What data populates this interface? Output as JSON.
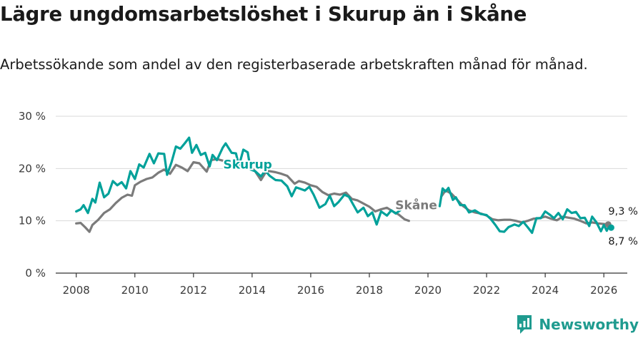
{
  "title": "Lägre ungdomsarbetslöshet i Skurup än i Skåne",
  "subtitle": "Arbetssökande som andel av den registerbaserade arbetskraften månad för månad.",
  "brand": "Newsworthy",
  "colors": {
    "skurup": "#00a19a",
    "skane": "#7b7b7b",
    "grid": "#d9d9d9",
    "axis": "#333333"
  },
  "chart_data": {
    "type": "line",
    "title": "Lägre ungdomsarbetslöshet i Skurup än i Skåne",
    "ylabel": "",
    "xlabel": "",
    "xlim": [
      2007.3,
      2026.8
    ],
    "ylim": [
      0,
      30
    ],
    "yticks": [
      0,
      10,
      20,
      30
    ],
    "ytick_labels": [
      "0 %",
      "10 %",
      "20 %",
      "30 %"
    ],
    "xticks": [
      2008,
      2010,
      2012,
      2014,
      2016,
      2018,
      2020,
      2022,
      2024,
      2026
    ],
    "xtick_labels": [
      "2008",
      "2010",
      "2012",
      "2014",
      "2016",
      "2018",
      "2020",
      "2022",
      "2024",
      "2026"
    ],
    "grid": true,
    "series": [
      {
        "name": "Skåne",
        "label": "Skåne",
        "end_label": "9,3 %",
        "points": [
          [
            2008.0,
            9.5
          ],
          [
            2008.15,
            9.6
          ],
          [
            2008.3,
            8.8
          ],
          [
            2008.45,
            7.9
          ],
          [
            2008.55,
            9.2
          ],
          [
            2008.75,
            10.2
          ],
          [
            2008.95,
            11.5
          ],
          [
            2009.15,
            12.2
          ],
          [
            2009.35,
            13.4
          ],
          [
            2009.55,
            14.4
          ],
          [
            2009.75,
            15.0
          ],
          [
            2009.9,
            14.8
          ],
          [
            2010.0,
            16.8
          ],
          [
            2010.2,
            17.5
          ],
          [
            2010.4,
            18.0
          ],
          [
            2010.6,
            18.3
          ],
          [
            2010.8,
            19.2
          ],
          [
            2011.0,
            19.8
          ],
          [
            2011.2,
            19.0
          ],
          [
            2011.4,
            20.7
          ],
          [
            2011.6,
            20.2
          ],
          [
            2011.8,
            19.5
          ],
          [
            2012.0,
            21.2
          ],
          [
            2012.2,
            21.0
          ],
          [
            2012.45,
            19.4
          ],
          [
            2012.6,
            21.6
          ],
          [
            2012.8,
            21.8
          ],
          [
            2013.0,
            21.5
          ],
          [
            2013.2,
            21.3
          ],
          [
            2013.4,
            21.2
          ],
          [
            2013.6,
            20.5
          ],
          [
            2013.9,
            20.5
          ],
          [
            2014.1,
            19.5
          ],
          [
            2014.3,
            17.8
          ],
          [
            2014.5,
            19.6
          ],
          [
            2014.8,
            19.3
          ],
          [
            2015.0,
            19.0
          ],
          [
            2015.2,
            18.6
          ],
          [
            2015.45,
            17.1
          ],
          [
            2015.6,
            17.6
          ],
          [
            2015.8,
            17.3
          ],
          [
            2016.0,
            16.8
          ],
          [
            2016.2,
            16.5
          ],
          [
            2016.4,
            15.5
          ],
          [
            2016.6,
            14.9
          ],
          [
            2016.8,
            15.2
          ],
          [
            2017.0,
            15.0
          ],
          [
            2017.2,
            15.4
          ],
          [
            2017.4,
            14.2
          ],
          [
            2017.6,
            13.9
          ],
          [
            2017.8,
            13.3
          ],
          [
            2018.0,
            12.7
          ],
          [
            2018.2,
            11.8
          ],
          [
            2018.4,
            12.2
          ],
          [
            2018.6,
            12.5
          ],
          [
            2018.8,
            11.8
          ],
          [
            2019.0,
            11.2
          ],
          [
            2019.2,
            10.3
          ],
          [
            2019.35,
            10.0
          ],
          [
            2020.45,
            14.6
          ],
          [
            2020.6,
            15.8
          ],
          [
            2020.8,
            15.2
          ],
          [
            2021.0,
            14.0
          ],
          [
            2021.2,
            12.8
          ],
          [
            2021.4,
            12.0
          ],
          [
            2021.6,
            11.6
          ],
          [
            2021.8,
            11.4
          ],
          [
            2022.0,
            11.0
          ],
          [
            2022.2,
            10.3
          ],
          [
            2022.4,
            10.1
          ],
          [
            2022.6,
            10.2
          ],
          [
            2022.8,
            10.2
          ],
          [
            2023.0,
            10.0
          ],
          [
            2023.2,
            9.7
          ],
          [
            2023.4,
            10.0
          ],
          [
            2023.6,
            10.4
          ],
          [
            2023.8,
            10.5
          ],
          [
            2024.0,
            10.8
          ],
          [
            2024.2,
            10.4
          ],
          [
            2024.4,
            10.1
          ],
          [
            2024.6,
            10.8
          ],
          [
            2024.8,
            10.6
          ],
          [
            2025.0,
            10.4
          ],
          [
            2025.2,
            10.0
          ],
          [
            2025.4,
            9.5
          ],
          [
            2025.6,
            9.7
          ],
          [
            2025.8,
            9.5
          ],
          [
            2026.0,
            9.4
          ],
          [
            2026.15,
            9.3
          ]
        ]
      },
      {
        "name": "Skurup",
        "label": "Skurup",
        "end_label": "8,7 %",
        "points": [
          [
            2008.0,
            11.8
          ],
          [
            2008.15,
            12.2
          ],
          [
            2008.25,
            13.0
          ],
          [
            2008.4,
            11.5
          ],
          [
            2008.55,
            14.2
          ],
          [
            2008.65,
            13.5
          ],
          [
            2008.8,
            17.3
          ],
          [
            2008.95,
            14.5
          ],
          [
            2009.1,
            15.2
          ],
          [
            2009.25,
            17.6
          ],
          [
            2009.4,
            16.8
          ],
          [
            2009.55,
            17.4
          ],
          [
            2009.7,
            16.2
          ],
          [
            2009.85,
            19.5
          ],
          [
            2010.0,
            18.0
          ],
          [
            2010.15,
            20.8
          ],
          [
            2010.3,
            20.2
          ],
          [
            2010.5,
            22.8
          ],
          [
            2010.65,
            21.0
          ],
          [
            2010.8,
            22.9
          ],
          [
            2011.0,
            22.8
          ],
          [
            2011.1,
            18.8
          ],
          [
            2011.25,
            21.2
          ],
          [
            2011.4,
            24.2
          ],
          [
            2011.55,
            23.8
          ],
          [
            2011.7,
            24.8
          ],
          [
            2011.85,
            25.9
          ],
          [
            2011.95,
            23.0
          ],
          [
            2012.1,
            24.5
          ],
          [
            2012.25,
            22.6
          ],
          [
            2012.4,
            23.0
          ],
          [
            2012.55,
            20.4
          ],
          [
            2012.65,
            22.6
          ],
          [
            2012.8,
            21.6
          ],
          [
            2013.0,
            24.0
          ],
          [
            2013.1,
            24.8
          ],
          [
            2013.3,
            23.0
          ],
          [
            2013.45,
            22.9
          ],
          [
            2013.55,
            20.5
          ],
          [
            2013.7,
            23.6
          ],
          [
            2013.85,
            23.1
          ],
          [
            2013.95,
            19.8
          ],
          [
            2014.1,
            19.5
          ],
          [
            2014.3,
            18.5
          ],
          [
            2014.45,
            19.6
          ],
          [
            2014.6,
            18.6
          ],
          [
            2014.8,
            17.8
          ],
          [
            2015.0,
            17.7
          ],
          [
            2015.2,
            16.6
          ],
          [
            2015.35,
            14.7
          ],
          [
            2015.5,
            16.4
          ],
          [
            2015.65,
            16.1
          ],
          [
            2015.8,
            15.8
          ],
          [
            2015.95,
            16.5
          ],
          [
            2016.1,
            15.0
          ],
          [
            2016.3,
            12.5
          ],
          [
            2016.5,
            13.2
          ],
          [
            2016.65,
            14.8
          ],
          [
            2016.8,
            12.8
          ],
          [
            2016.95,
            13.6
          ],
          [
            2017.15,
            15.0
          ],
          [
            2017.3,
            14.6
          ],
          [
            2017.45,
            13.1
          ],
          [
            2017.6,
            11.6
          ],
          [
            2017.8,
            12.5
          ],
          [
            2017.95,
            10.9
          ],
          [
            2018.1,
            11.6
          ],
          [
            2018.25,
            9.3
          ],
          [
            2018.4,
            11.8
          ],
          [
            2018.6,
            11.0
          ],
          [
            2018.75,
            12.0
          ],
          [
            2018.9,
            11.4
          ],
          [
            2019.05,
            12.0
          ],
          [
            2020.4,
            12.8
          ],
          [
            2020.5,
            16.2
          ],
          [
            2020.6,
            15.6
          ],
          [
            2020.7,
            16.3
          ],
          [
            2020.85,
            14.0
          ],
          [
            2020.95,
            14.5
          ],
          [
            2021.1,
            13.0
          ],
          [
            2021.25,
            13.0
          ],
          [
            2021.4,
            11.6
          ],
          [
            2021.6,
            12.0
          ],
          [
            2021.8,
            11.3
          ],
          [
            2022.0,
            11.1
          ],
          [
            2022.15,
            10.3
          ],
          [
            2022.3,
            9.2
          ],
          [
            2022.45,
            8.0
          ],
          [
            2022.6,
            7.9
          ],
          [
            2022.75,
            8.8
          ],
          [
            2022.95,
            9.3
          ],
          [
            2023.1,
            9.0
          ],
          [
            2023.25,
            9.8
          ],
          [
            2023.4,
            8.8
          ],
          [
            2023.55,
            7.7
          ],
          [
            2023.7,
            10.5
          ],
          [
            2023.85,
            10.5
          ],
          [
            2024.0,
            11.8
          ],
          [
            2024.15,
            11.2
          ],
          [
            2024.3,
            10.5
          ],
          [
            2024.45,
            11.5
          ],
          [
            2024.6,
            10.3
          ],
          [
            2024.75,
            12.2
          ],
          [
            2024.9,
            11.5
          ],
          [
            2025.05,
            11.7
          ],
          [
            2025.2,
            10.5
          ],
          [
            2025.35,
            10.6
          ],
          [
            2025.5,
            9.0
          ],
          [
            2025.6,
            10.8
          ],
          [
            2025.75,
            9.7
          ],
          [
            2025.9,
            8.0
          ],
          [
            2026.0,
            9.2
          ],
          [
            2026.1,
            8.1
          ],
          [
            2026.2,
            9.5
          ],
          [
            2026.25,
            8.7
          ]
        ]
      }
    ],
    "annotations": [
      {
        "text": "Skurup",
        "series": "Skurup",
        "x": 2013.85,
        "y": 20.0
      },
      {
        "text": "Skåne",
        "series": "Skåne",
        "x": 2019.6,
        "y": 12.2
      }
    ]
  }
}
